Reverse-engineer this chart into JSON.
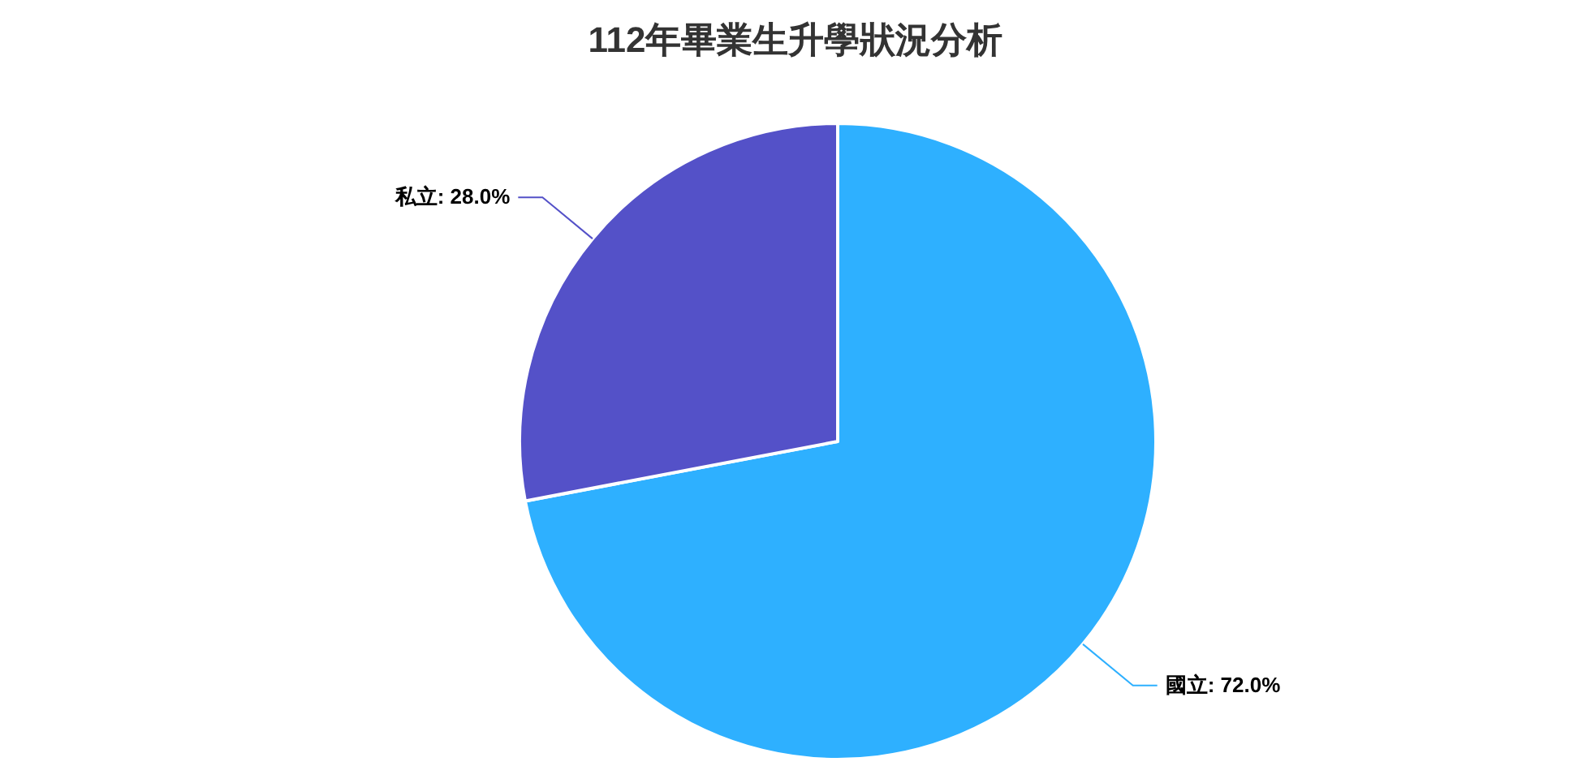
{
  "chart_data": {
    "type": "pie",
    "title": "112年畢業生升學狀況分析",
    "categories": [
      "國立",
      "私立"
    ],
    "values": [
      72.0,
      28.0
    ],
    "colors": [
      "#2eb0ff",
      "#5451c8"
    ],
    "value_labels": [
      ": 72.0%",
      ": 28.0%"
    ]
  }
}
